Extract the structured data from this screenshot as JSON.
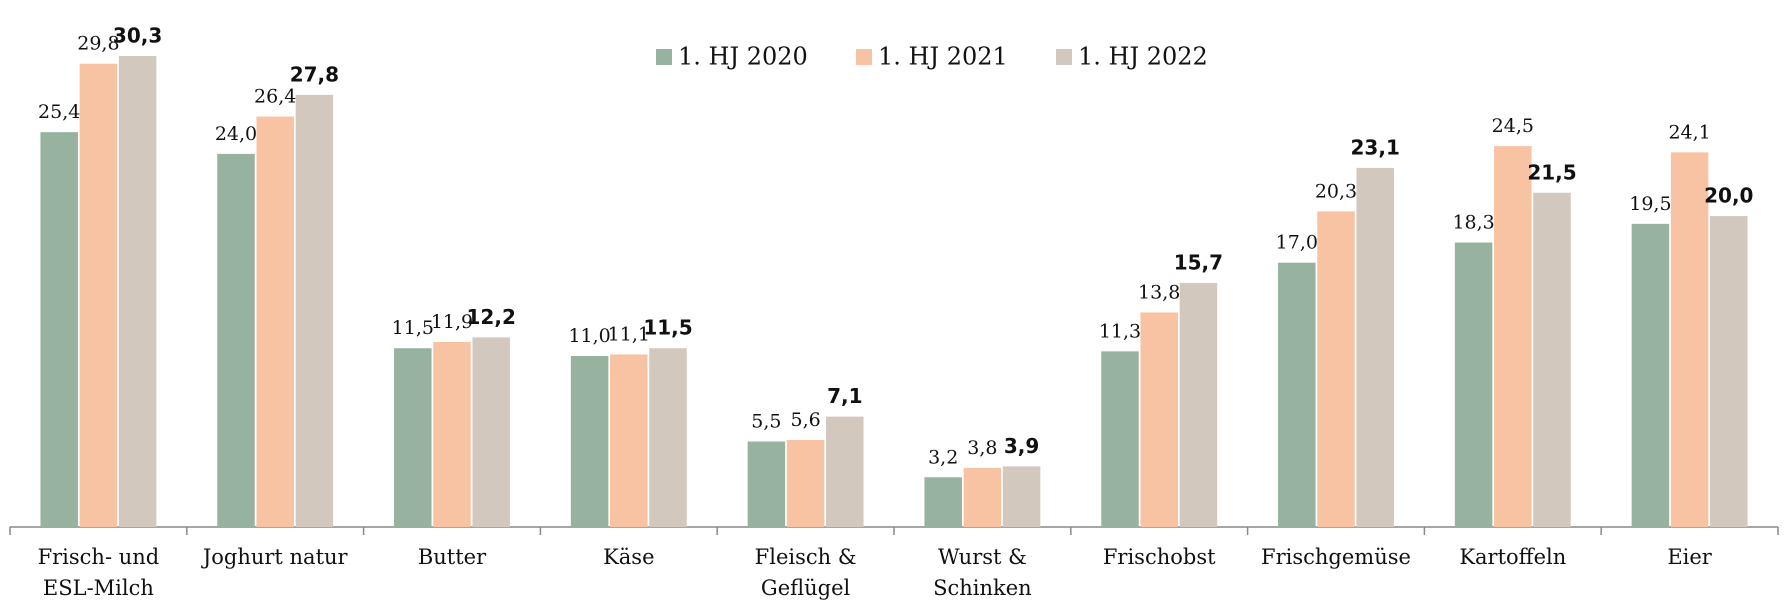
{
  "chart_data": {
    "type": "bar",
    "categories": [
      "Frisch- und\nESL-Milch",
      "Joghurt natur",
      "Butter",
      "Käse",
      "Fleisch &\nGeflügel",
      "Wurst &\nSchinken",
      "Frischobst",
      "Frischgemüse",
      "Kartoffeln",
      "Eier"
    ],
    "series": [
      {
        "name": "1. HJ 2020",
        "color": "#97b3a0",
        "values": [
          25.4,
          24.0,
          11.5,
          11.0,
          5.5,
          3.2,
          11.3,
          17.0,
          18.3,
          19.5
        ],
        "value_labels": [
          "25,4",
          "24,0",
          "11,5",
          "11,0",
          "5,5",
          "3,2",
          "11,3",
          "17,0",
          "18,3",
          "19,5"
        ]
      },
      {
        "name": "1. HJ 2021",
        "color": "#f8c3a2",
        "values": [
          29.8,
          26.4,
          11.9,
          11.1,
          5.6,
          3.8,
          13.8,
          20.3,
          24.5,
          24.1
        ],
        "value_labels": [
          "29,8",
          "26,4",
          "11,9",
          "11,1",
          "5,6",
          "3,8",
          "13,8",
          "20,3",
          "24,5",
          "24,1"
        ]
      },
      {
        "name": "1. HJ 2022",
        "color": "#d3c8be",
        "values": [
          30.3,
          27.8,
          12.2,
          11.5,
          7.1,
          3.9,
          15.7,
          23.1,
          21.5,
          20.0
        ],
        "value_labels": [
          "30,3",
          "27,8",
          "12,2",
          "11,5",
          "7,1",
          "3,9",
          "15,7",
          "23,1",
          "21,5",
          "20,0"
        ]
      }
    ],
    "ylim": [
      0,
      33.9
    ]
  }
}
